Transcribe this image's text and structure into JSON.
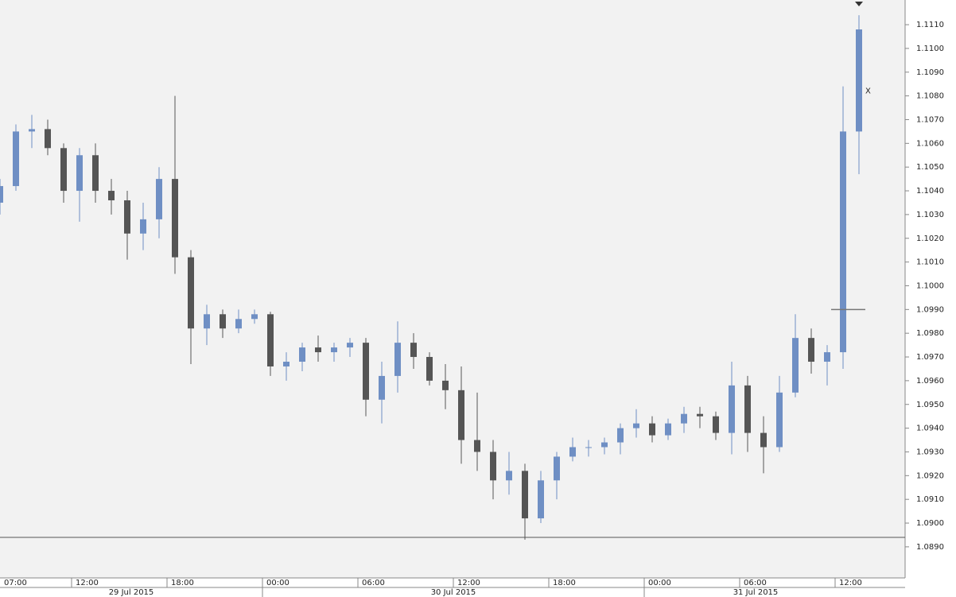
{
  "chart_data": {
    "type": "candlestick",
    "x": [
      "29 Jul 2015 07:00",
      "29 Jul 2015 08:00",
      "29 Jul 2015 09:00",
      "29 Jul 2015 10:00",
      "29 Jul 2015 11:00",
      "29 Jul 2015 12:00",
      "29 Jul 2015 13:00",
      "29 Jul 2015 14:00",
      "29 Jul 2015 15:00",
      "29 Jul 2015 16:00",
      "29 Jul 2015 17:00",
      "29 Jul 2015 18:00",
      "29 Jul 2015 19:00",
      "29 Jul 2015 20:00",
      "29 Jul 2015 21:00",
      "29 Jul 2015 22:00",
      "29 Jul 2015 23:00",
      "30 Jul 2015 00:00",
      "30 Jul 2015 01:00",
      "30 Jul 2015 02:00",
      "30 Jul 2015 03:00",
      "30 Jul 2015 04:00",
      "30 Jul 2015 05:00",
      "30 Jul 2015 06:00",
      "30 Jul 2015 07:00",
      "30 Jul 2015 08:00",
      "30 Jul 2015 09:00",
      "30 Jul 2015 10:00",
      "30 Jul 2015 11:00",
      "30 Jul 2015 12:00",
      "30 Jul 2015 13:00",
      "30 Jul 2015 14:00",
      "30 Jul 2015 15:00",
      "30 Jul 2015 16:00",
      "30 Jul 2015 17:00",
      "30 Jul 2015 18:00",
      "30 Jul 2015 19:00",
      "30 Jul 2015 20:00",
      "30 Jul 2015 21:00",
      "30 Jul 2015 22:00",
      "30 Jul 2015 23:00",
      "31 Jul 2015 00:00",
      "31 Jul 2015 01:00",
      "31 Jul 2015 02:00",
      "31 Jul 2015 03:00",
      "31 Jul 2015 04:00",
      "31 Jul 2015 05:00",
      "31 Jul 2015 06:00",
      "31 Jul 2015 07:00",
      "31 Jul 2015 08:00",
      "31 Jul 2015 09:00",
      "31 Jul 2015 10:00",
      "31 Jul 2015 11:00",
      "31 Jul 2015 12:00",
      "31 Jul 2015 13:00"
    ],
    "open": [
      1.1035,
      1.1042,
      1.1065,
      1.1066,
      1.1058,
      1.104,
      1.1055,
      1.104,
      1.1036,
      1.1022,
      1.1028,
      1.1045,
      1.1012,
      1.0982,
      1.0988,
      1.0982,
      1.0986,
      1.0988,
      1.0966,
      1.0968,
      1.0974,
      1.0972,
      1.0974,
      1.0976,
      1.0952,
      1.0962,
      1.0976,
      1.097,
      1.096,
      1.0956,
      1.0935,
      1.093,
      1.0918,
      1.0922,
      1.0902,
      1.0918,
      1.0928,
      1.0932,
      1.0932,
      1.0934,
      1.094,
      1.0942,
      1.0937,
      1.0942,
      1.0946,
      1.0945,
      1.0938,
      1.0958,
      1.0938,
      1.0932,
      1.0955,
      1.0978,
      1.0968,
      1.0972,
      1.1065
    ],
    "high": [
      1.1045,
      1.1068,
      1.1072,
      1.107,
      1.106,
      1.1058,
      1.106,
      1.1045,
      1.104,
      1.1035,
      1.105,
      1.108,
      1.1015,
      1.0992,
      1.099,
      1.099,
      1.099,
      1.0989,
      1.0972,
      1.0976,
      1.0979,
      1.0976,
      1.0978,
      1.0978,
      1.0968,
      1.0985,
      1.098,
      1.0972,
      1.0967,
      1.0966,
      1.0955,
      1.0935,
      1.093,
      1.0925,
      1.0922,
      1.093,
      1.0936,
      1.0935,
      1.0936,
      1.0942,
      1.0948,
      1.0945,
      1.0944,
      1.0949,
      1.0949,
      1.0947,
      1.0968,
      1.0962,
      1.0945,
      1.0962,
      1.0988,
      1.0982,
      1.0975,
      1.1084,
      1.1114
    ],
    "low": [
      1.103,
      1.104,
      1.1058,
      1.1055,
      1.1035,
      1.1027,
      1.1035,
      1.103,
      1.1011,
      1.1015,
      1.102,
      1.1005,
      1.0967,
      1.0975,
      1.0978,
      1.098,
      1.0984,
      1.0962,
      1.096,
      1.0964,
      1.0968,
      1.0968,
      1.097,
      1.0945,
      1.0942,
      1.0955,
      1.0965,
      1.0958,
      1.0948,
      1.0925,
      1.0922,
      1.091,
      1.0912,
      1.0893,
      1.09,
      1.091,
      1.0926,
      1.0928,
      1.0929,
      1.0929,
      1.0936,
      1.0934,
      1.0935,
      1.0938,
      1.094,
      1.0935,
      1.0929,
      1.093,
      1.0921,
      1.093,
      1.0953,
      1.0963,
      1.0958,
      1.0965,
      1.1047
    ],
    "close": [
      1.1042,
      1.1065,
      1.1066,
      1.1058,
      1.104,
      1.1055,
      1.104,
      1.1036,
      1.1022,
      1.1028,
      1.1045,
      1.1012,
      1.0982,
      1.0988,
      1.0982,
      1.0986,
      1.0988,
      1.0966,
      1.0968,
      1.0974,
      1.0972,
      1.0974,
      1.0976,
      1.0952,
      1.0962,
      1.0976,
      1.097,
      1.096,
      1.0956,
      1.0935,
      1.093,
      1.0918,
      1.0922,
      1.0902,
      1.0918,
      1.0928,
      1.0932,
      1.0932,
      1.0934,
      1.094,
      1.0942,
      1.0937,
      1.0942,
      1.0946,
      1.0945,
      1.0938,
      1.0958,
      1.0938,
      1.0932,
      1.0955,
      1.0978,
      1.0968,
      1.0972,
      1.1065,
      1.1108
    ],
    "up_color": "#6f8fc4",
    "down_color": "#555555",
    "ylim": [
      1.08769,
      1.11204
    ],
    "yticks": [
      {
        "value": 1.089,
        "label": "1.0890"
      },
      {
        "value": 1.09,
        "label": "1.0900"
      },
      {
        "value": 1.091,
        "label": "1.0910"
      },
      {
        "value": 1.092,
        "label": "1.0920"
      },
      {
        "value": 1.093,
        "label": "1.0930"
      },
      {
        "value": 1.094,
        "label": "1.0940"
      },
      {
        "value": 1.095,
        "label": "1.0950"
      },
      {
        "value": 1.096,
        "label": "1.0960"
      },
      {
        "value": 1.097,
        "label": "1.0970"
      },
      {
        "value": 1.098,
        "label": "1.0980"
      },
      {
        "value": 1.099,
        "label": "1.0990"
      },
      {
        "value": 1.1,
        "label": "1.1000"
      },
      {
        "value": 1.101,
        "label": "1.1010"
      },
      {
        "value": 1.102,
        "label": "1.1020"
      },
      {
        "value": 1.103,
        "label": "1.1030"
      },
      {
        "value": 1.104,
        "label": "1.1040"
      },
      {
        "value": 1.105,
        "label": "1.1050"
      },
      {
        "value": 1.106,
        "label": "1.1060"
      },
      {
        "value": 1.107,
        "label": "1.1070"
      },
      {
        "value": 1.108,
        "label": "1.1080"
      },
      {
        "value": 1.109,
        "label": "1.1090"
      },
      {
        "value": 1.11,
        "label": "1.1100"
      },
      {
        "value": 1.111,
        "label": "1.1110"
      }
    ],
    "hour_ticks": [
      "07:00",
      "12:00",
      "18:00",
      "00:00",
      "06:00",
      "12:00",
      "18:00",
      "00:00",
      "06:00",
      "12:00"
    ],
    "date_labels": [
      "29 Jul 2015",
      "30 Jul 2015",
      "31 Jul 2015"
    ],
    "price_line": 1.0894,
    "marker_line": 1.099,
    "annotation": {
      "text": "X",
      "price": 1.1082,
      "color": "#ff00ff"
    }
  }
}
